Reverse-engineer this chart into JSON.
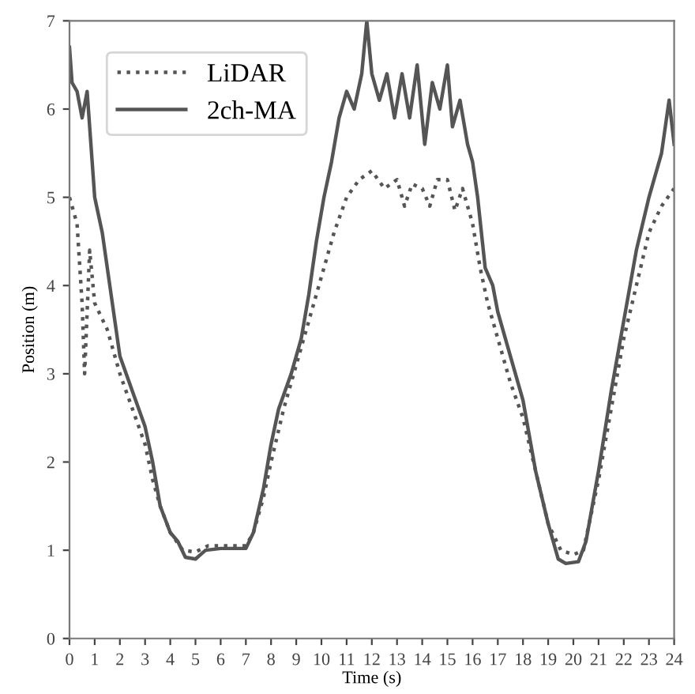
{
  "chart_data": {
    "type": "line",
    "xlabel": "Time (s)",
    "ylabel": "Position (m)",
    "xlim": [
      0,
      24
    ],
    "ylim": [
      0,
      7
    ],
    "xticks": [
      0,
      1,
      2,
      3,
      4,
      5,
      6,
      7,
      8,
      9,
      10,
      11,
      12,
      13,
      14,
      15,
      16,
      17,
      18,
      19,
      20,
      21,
      22,
      23,
      24
    ],
    "yticks": [
      0,
      1,
      2,
      3,
      4,
      5,
      6,
      7
    ],
    "grid": false,
    "legend": "top left",
    "marker": "none",
    "series": [
      {
        "name": "LiDAR",
        "color": "#555555",
        "line_style": "dotted",
        "x": [
          0,
          0.3,
          0.5,
          0.6,
          0.8,
          1,
          1.5,
          2,
          2.5,
          3,
          3.3,
          3.6,
          4,
          4.5,
          5,
          5.5,
          6,
          7,
          7.3,
          7.7,
          8,
          8.5,
          9,
          9.5,
          10,
          10.5,
          11,
          11.5,
          12,
          12.5,
          13,
          13.3,
          13.6,
          14,
          14.3,
          14.6,
          15,
          15.3,
          15.6,
          16,
          16.3,
          16.6,
          17,
          17.5,
          18,
          18.5,
          19,
          19.5,
          20,
          20.4,
          21,
          21.5,
          22,
          22.5,
          23,
          23.5,
          24
        ],
        "values": [
          5.0,
          4.7,
          3.8,
          3.0,
          4.4,
          3.8,
          3.5,
          3.0,
          2.6,
          2.2,
          1.8,
          1.5,
          1.2,
          1.0,
          0.98,
          1.05,
          1.05,
          1.05,
          1.2,
          1.6,
          2.0,
          2.6,
          3.1,
          3.6,
          4.1,
          4.6,
          5.0,
          5.2,
          5.3,
          5.1,
          5.2,
          4.9,
          5.15,
          5.1,
          4.9,
          5.2,
          5.2,
          4.85,
          5.1,
          4.7,
          4.2,
          3.8,
          3.4,
          2.9,
          2.5,
          1.9,
          1.3,
          1.0,
          0.95,
          1.0,
          1.8,
          2.6,
          3.4,
          4.0,
          4.6,
          4.9,
          5.1
        ]
      },
      {
        "name": "2ch-MA",
        "color": "#555555",
        "line_style": "solid",
        "x": [
          0,
          0.1,
          0.3,
          0.5,
          0.7,
          1,
          1.3,
          1.6,
          2,
          2.5,
          3,
          3.3,
          3.6,
          4,
          4.3,
          4.6,
          5,
          5.4,
          6,
          7,
          7.3,
          7.7,
          8,
          8.3,
          8.8,
          9.2,
          9.5,
          9.8,
          10.1,
          10.4,
          10.7,
          11,
          11.3,
          11.6,
          11.8,
          12,
          12.3,
          12.6,
          12.9,
          13.2,
          13.5,
          13.8,
          14.1,
          14.4,
          14.7,
          15,
          15.2,
          15.5,
          15.8,
          16,
          16.2,
          16.5,
          16.8,
          17,
          17.5,
          18,
          18.5,
          19,
          19.4,
          19.7,
          20.2,
          20.5,
          21,
          21.5,
          22,
          22.5,
          23,
          23.5,
          23.8,
          24
        ],
        "values": [
          6.7,
          6.3,
          6.2,
          5.9,
          6.2,
          5.0,
          4.6,
          4.0,
          3.2,
          2.8,
          2.4,
          2.0,
          1.5,
          1.2,
          1.1,
          0.92,
          0.9,
          1.0,
          1.02,
          1.02,
          1.2,
          1.7,
          2.2,
          2.6,
          3.0,
          3.4,
          3.9,
          4.5,
          5.0,
          5.4,
          5.9,
          6.2,
          6.0,
          6.4,
          7.0,
          6.4,
          6.1,
          6.4,
          5.9,
          6.4,
          5.9,
          6.5,
          5.6,
          6.3,
          6.0,
          6.5,
          5.8,
          6.1,
          5.6,
          5.4,
          5.0,
          4.2,
          4.0,
          3.7,
          3.2,
          2.7,
          1.9,
          1.3,
          0.9,
          0.85,
          0.87,
          1.1,
          1.9,
          2.8,
          3.6,
          4.4,
          5.0,
          5.5,
          6.1,
          5.6
        ]
      }
    ]
  }
}
